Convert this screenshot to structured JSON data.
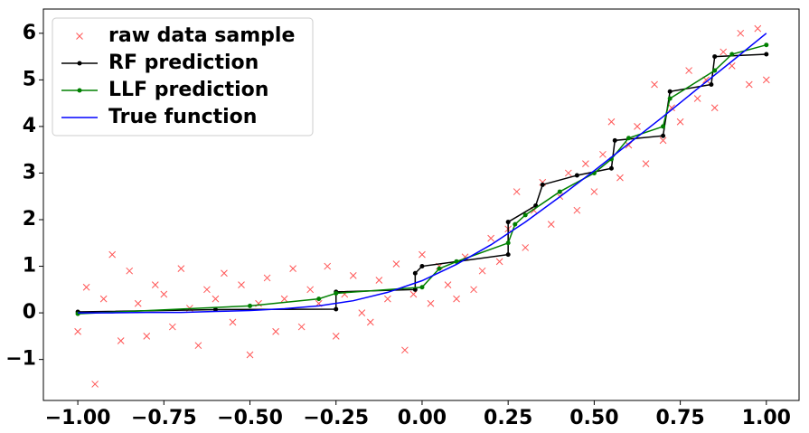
{
  "chart_data": {
    "type": "line",
    "xlim": [
      -1.1,
      1.095
    ],
    "ylim": [
      -1.88,
      6.52
    ],
    "xticks": [
      {
        "value": -1,
        "label": "−1.00"
      },
      {
        "value": -0.75,
        "label": "−0.75"
      },
      {
        "value": -0.5,
        "label": "−0.50"
      },
      {
        "value": -0.25,
        "label": "−0.25"
      },
      {
        "value": 0,
        "label": "0.00"
      },
      {
        "value": 0.25,
        "label": "0.25"
      },
      {
        "value": 0.5,
        "label": "0.50"
      },
      {
        "value": 0.75,
        "label": "0.75"
      },
      {
        "value": 1,
        "label": "1.00"
      }
    ],
    "yticks": [
      {
        "value": -1,
        "label": "−1"
      },
      0,
      1,
      2,
      3,
      4,
      5,
      6
    ],
    "legend": "upper left",
    "series": [
      {
        "name": "raw data sample",
        "color": "#ff5555",
        "marker": "x",
        "line": false,
        "x": [
          -1,
          -0.975,
          -0.95,
          -0.925,
          -0.9,
          -0.875,
          -0.85,
          -0.825,
          -0.8,
          -0.775,
          -0.75,
          -0.725,
          -0.7,
          -0.675,
          -0.65,
          -0.625,
          -0.6,
          -0.575,
          -0.55,
          -0.525,
          -0.5,
          -0.475,
          -0.45,
          -0.425,
          -0.4,
          -0.375,
          -0.35,
          -0.325,
          -0.3,
          -0.275,
          -0.25,
          -0.225,
          -0.2,
          -0.175,
          -0.15,
          -0.125,
          -0.1,
          -0.075,
          -0.05,
          -0.025,
          0,
          0.025,
          0.05,
          0.075,
          0.1,
          0.125,
          0.15,
          0.175,
          0.2,
          0.225,
          0.25,
          0.275,
          0.3,
          0.325,
          0.35,
          0.375,
          0.4,
          0.425,
          0.45,
          0.475,
          0.5,
          0.525,
          0.55,
          0.575,
          0.6,
          0.625,
          0.65,
          0.675,
          0.7,
          0.725,
          0.75,
          0.775,
          0.8,
          0.825,
          0.85,
          0.875,
          0.9,
          0.925,
          0.95,
          0.975,
          1
        ],
        "values": [
          -0.4,
          0.55,
          -1.53,
          0.3,
          1.25,
          -0.6,
          0.9,
          0.2,
          -0.5,
          0.6,
          0.4,
          -0.3,
          0.95,
          0.1,
          -0.7,
          0.5,
          0.3,
          0.85,
          -0.2,
          0.6,
          -0.9,
          0.2,
          0.75,
          -0.4,
          0.3,
          0.95,
          -0.3,
          0.5,
          0.2,
          1.0,
          -0.5,
          0.4,
          0.8,
          0.0,
          -0.2,
          0.7,
          0.3,
          1.05,
          -0.8,
          0.4,
          1.25,
          0.2,
          1.0,
          0.6,
          0.3,
          1.2,
          0.5,
          0.9,
          1.6,
          1.1,
          1.8,
          2.6,
          1.4,
          2.2,
          2.8,
          1.9,
          2.5,
          3.0,
          2.2,
          3.2,
          2.6,
          3.4,
          4.1,
          2.9,
          3.6,
          4.0,
          3.2,
          4.9,
          3.7,
          4.4,
          4.1,
          5.2,
          4.6,
          5.0,
          4.4,
          5.6,
          5.3,
          6.0,
          4.9,
          6.1,
          5.0
        ]
      },
      {
        "name": "RF prediction",
        "color": "#000000",
        "marker": "dot",
        "line": true,
        "x": [
          -1,
          -0.6,
          -0.25,
          -0.25,
          -0.02,
          -0.02,
          0.0,
          0.1,
          0.25,
          0.25,
          0.33,
          0.35,
          0.45,
          0.55,
          0.56,
          0.7,
          0.72,
          0.84,
          0.85,
          1.0
        ],
        "values": [
          0.02,
          0.07,
          0.08,
          0.45,
          0.5,
          0.85,
          1.0,
          1.1,
          1.25,
          1.95,
          2.3,
          2.75,
          2.95,
          3.1,
          3.7,
          3.8,
          4.75,
          4.9,
          5.5,
          5.55
        ]
      },
      {
        "name": "LLF prediction",
        "color": "#008000",
        "marker": "dot",
        "line": true,
        "x": [
          -1,
          -0.5,
          -0.3,
          -0.25,
          0,
          0.05,
          0.1,
          0.25,
          0.27,
          0.3,
          0.4,
          0.5,
          0.55,
          0.6,
          0.7,
          0.72,
          0.85,
          0.9,
          1.0
        ],
        "values": [
          -0.02,
          0.15,
          0.3,
          0.42,
          0.55,
          0.95,
          1.1,
          1.5,
          1.9,
          2.1,
          2.6,
          3.0,
          3.3,
          3.75,
          4.0,
          4.6,
          5.2,
          5.55,
          5.75
        ]
      },
      {
        "name": "True function",
        "color": "#0000ff",
        "marker": "none",
        "line": true,
        "x": [
          -1,
          -0.9,
          -0.8,
          -0.7,
          -0.6,
          -0.5,
          -0.4,
          -0.3,
          -0.2,
          -0.1,
          0,
          0.1,
          0.2,
          0.3,
          0.4,
          0.5,
          0.6,
          0.7,
          0.8,
          0.9,
          1
        ],
        "values": [
          0.0,
          0.0,
          0.01,
          0.01,
          0.03,
          0.05,
          0.09,
          0.15,
          0.26,
          0.44,
          0.69,
          1.04,
          1.46,
          1.95,
          2.49,
          3.05,
          3.63,
          4.21,
          4.81,
          5.4,
          6.0
        ]
      }
    ]
  }
}
